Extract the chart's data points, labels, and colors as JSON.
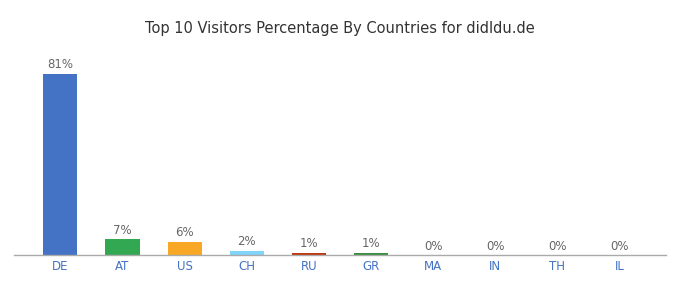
{
  "categories": [
    "DE",
    "AT",
    "US",
    "CH",
    "RU",
    "GR",
    "MA",
    "IN",
    "TH",
    "IL"
  ],
  "values": [
    81,
    7,
    6,
    2,
    1,
    1,
    0,
    0,
    0,
    0
  ],
  "labels": [
    "81%",
    "7%",
    "6%",
    "2%",
    "1%",
    "1%",
    "0%",
    "0%",
    "0%",
    "0%"
  ],
  "bar_colors": [
    "#4472c4",
    "#33a853",
    "#f9a825",
    "#81d4fa",
    "#bf360c",
    "#388e3c",
    "#4472c4",
    "#4472c4",
    "#4472c4",
    "#4472c4"
  ],
  "title": "Top 10 Visitors Percentage By Countries for didldu.de",
  "ylim": [
    0,
    90
  ],
  "background_color": "#ffffff",
  "label_fontsize": 8.5,
  "title_fontsize": 10.5,
  "tick_fontsize": 8.5,
  "bar_width": 0.55
}
